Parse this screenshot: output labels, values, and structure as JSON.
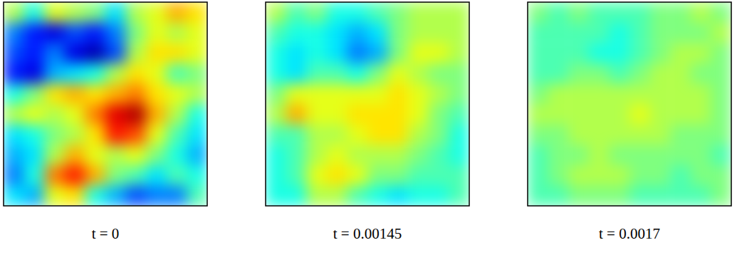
{
  "chart_data": [
    {
      "type": "heatmap",
      "title": "t = 0",
      "tick_labels": false,
      "zlim": [
        -1,
        1
      ],
      "cells": [
        [
          0.1,
          -0.2,
          0.2,
          0.1,
          0.0,
          -0.3,
          0.1,
          0.2,
          0.4,
          0.3
        ],
        [
          -0.5,
          -0.7,
          -0.8,
          -0.6,
          -0.7,
          -0.5,
          0.0,
          0.2,
          0.1,
          0.2
        ],
        [
          -0.6,
          -0.7,
          -0.5,
          -0.8,
          -0.9,
          -0.6,
          0.1,
          0.3,
          0.3,
          0.2
        ],
        [
          -0.7,
          -0.8,
          -0.4,
          -0.3,
          -0.2,
          0.1,
          0.3,
          0.2,
          -0.1,
          0.0
        ],
        [
          -0.2,
          0.0,
          0.3,
          0.4,
          0.3,
          0.4,
          0.5,
          0.3,
          0.2,
          0.1
        ],
        [
          0.1,
          0.2,
          0.1,
          0.2,
          0.5,
          0.8,
          0.9,
          0.4,
          0.1,
          -0.2
        ],
        [
          -0.3,
          -0.2,
          0.0,
          0.1,
          0.3,
          0.7,
          0.6,
          0.2,
          -0.1,
          -0.3
        ],
        [
          -0.4,
          -0.3,
          0.1,
          0.4,
          0.2,
          0.1,
          0.2,
          0.0,
          -0.2,
          -0.4
        ],
        [
          -0.5,
          -0.2,
          0.5,
          0.7,
          0.4,
          0.0,
          -0.1,
          -0.3,
          -0.1,
          -0.2
        ],
        [
          -0.3,
          -0.4,
          0.2,
          0.3,
          -0.2,
          -0.4,
          -0.6,
          -0.5,
          -0.5,
          -0.1
        ]
      ]
    },
    {
      "type": "heatmap",
      "title": "t = 0.00145",
      "tick_labels": false,
      "zlim": [
        -1,
        1
      ],
      "cells": [
        [
          0.1,
          -0.1,
          0.0,
          -0.2,
          -0.2,
          -0.1,
          0.0,
          0.1,
          0.1,
          0.1
        ],
        [
          -0.1,
          -0.2,
          -0.2,
          -0.3,
          -0.4,
          -0.3,
          0.0,
          0.1,
          0.1,
          0.1
        ],
        [
          -0.2,
          -0.3,
          -0.2,
          -0.3,
          -0.5,
          -0.4,
          0.0,
          0.2,
          0.2,
          0.1
        ],
        [
          -0.2,
          -0.3,
          -0.1,
          -0.1,
          -0.2,
          0.0,
          0.2,
          0.1,
          0.0,
          0.0
        ],
        [
          0.0,
          0.2,
          0.2,
          0.2,
          0.2,
          0.2,
          0.3,
          0.2,
          0.1,
          0.0
        ],
        [
          0.1,
          0.4,
          0.2,
          0.2,
          0.3,
          0.3,
          0.3,
          0.2,
          0.0,
          -0.1
        ],
        [
          -0.1,
          -0.1,
          0.1,
          0.1,
          0.2,
          0.3,
          0.3,
          0.1,
          0.0,
          -0.2
        ],
        [
          -0.2,
          -0.1,
          0.1,
          0.2,
          0.1,
          0.1,
          0.1,
          0.0,
          -0.1,
          -0.2
        ],
        [
          -0.2,
          -0.1,
          0.2,
          0.3,
          0.2,
          0.0,
          0.0,
          -0.1,
          -0.1,
          -0.1
        ],
        [
          -0.2,
          -0.2,
          0.1,
          0.1,
          -0.1,
          -0.2,
          -0.3,
          -0.2,
          -0.2,
          -0.1
        ]
      ]
    },
    {
      "type": "heatmap",
      "title": "t = 0.0017",
      "tick_labels": false,
      "zlim": [
        -1,
        1
      ],
      "cells": [
        [
          0.0,
          -0.1,
          0.0,
          -0.1,
          -0.1,
          -0.1,
          0.0,
          0.0,
          0.1,
          0.0
        ],
        [
          -0.1,
          -0.1,
          -0.1,
          -0.1,
          -0.2,
          -0.1,
          0.0,
          0.0,
          0.0,
          0.1
        ],
        [
          -0.1,
          -0.1,
          -0.1,
          -0.2,
          -0.2,
          -0.1,
          0.0,
          0.1,
          0.1,
          0.0
        ],
        [
          -0.1,
          -0.1,
          0.0,
          0.0,
          -0.1,
          0.0,
          0.1,
          0.1,
          0.0,
          0.0
        ],
        [
          0.0,
          0.1,
          0.1,
          0.1,
          0.1,
          0.1,
          0.1,
          0.1,
          0.1,
          0.0
        ],
        [
          0.1,
          0.1,
          0.1,
          0.1,
          0.1,
          0.2,
          0.1,
          0.1,
          0.1,
          0.0
        ],
        [
          0.0,
          0.0,
          0.1,
          0.1,
          0.1,
          0.1,
          0.1,
          0.0,
          0.0,
          0.0
        ],
        [
          -0.1,
          0.0,
          0.0,
          0.1,
          0.0,
          0.0,
          0.0,
          0.0,
          0.0,
          -0.1
        ],
        [
          -0.1,
          0.0,
          0.1,
          0.1,
          0.1,
          0.0,
          0.0,
          -0.1,
          0.0,
          0.0
        ],
        [
          -0.1,
          -0.1,
          0.0,
          0.0,
          0.0,
          -0.1,
          -0.1,
          -0.1,
          -0.1,
          0.0
        ]
      ]
    }
  ]
}
